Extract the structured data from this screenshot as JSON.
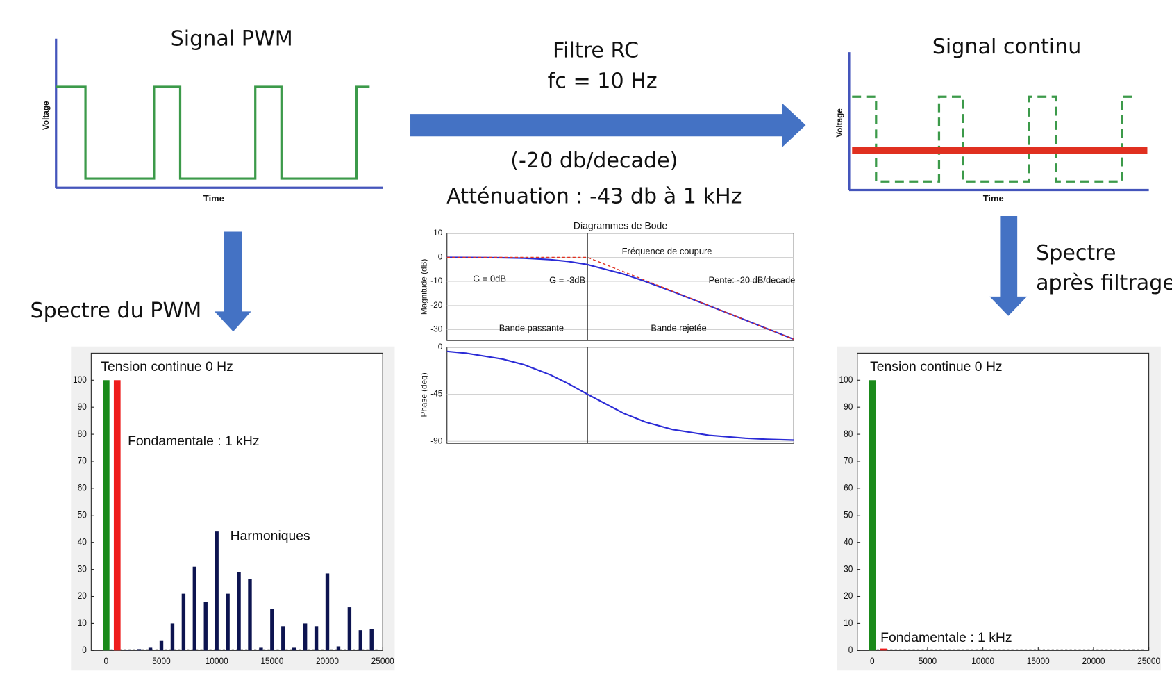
{
  "texts": {
    "filter": "Filtre RC",
    "cutoff": "fc = 10 Hz",
    "slope": "(-20 db/decade)",
    "attenuation": "Atténuation : -43 db à 1 kHz",
    "spectrum_pwm": "Spectre du PWM",
    "spectrum_after": [
      "Spectre",
      "après filtrage"
    ]
  },
  "chart_data": [
    {
      "type": "line",
      "title": "Signal PWM",
      "xlabel": "Time",
      "ylabel": "Voltage",
      "xlim": [
        0,
        100
      ],
      "ylim": [
        -0.1,
        1.5
      ],
      "series": [
        {
          "color": "#3c9a4a",
          "x": [
            0,
            9,
            9,
            30,
            30,
            38,
            38,
            61,
            61,
            69,
            69,
            92,
            92,
            96
          ],
          "values": [
            1,
            1,
            0,
            0,
            1,
            1,
            0,
            0,
            1,
            1,
            0,
            0,
            1,
            1
          ]
        }
      ]
    },
    {
      "type": "line",
      "title": "Signal continu",
      "xlabel": "Time",
      "ylabel": "Voltage",
      "xlim": [
        0,
        100
      ],
      "ylim": [
        -0.1,
        1.5
      ],
      "series": [
        {
          "color": "#3c9a4a",
          "style": "dashed",
          "x": [
            1,
            9,
            9,
            30,
            30,
            38,
            38,
            60,
            60,
            69,
            69,
            91,
            91,
            96
          ],
          "values": [
            1,
            1,
            0,
            0,
            1,
            1,
            0,
            0,
            1,
            1,
            0,
            0,
            1,
            1
          ]
        },
        {
          "color": "#e03020",
          "x": [
            1,
            99.5
          ],
          "values": [
            0.37,
            0.37
          ]
        }
      ]
    },
    {
      "type": "line",
      "title": "Diagrammes de Bode",
      "ylabel": "Magnitude (dB)",
      "xscale": "log",
      "xlim": [
        0.7,
        500
      ],
      "ylim": [
        -34.5,
        10
      ],
      "yticks": [
        10,
        0,
        -10,
        -20,
        -30
      ],
      "grid": true,
      "vline": 10,
      "series": [
        {
          "color": "#2b2bd6",
          "x": [
            0.7,
            1,
            2,
            3,
            5,
            7,
            10,
            20,
            30,
            50,
            100,
            200,
            300,
            500
          ],
          "values": [
            -0.02,
            -0.04,
            -0.17,
            -0.37,
            -0.97,
            -1.74,
            -3.01,
            -6.99,
            -10.0,
            -14.15,
            -20.04,
            -26.03,
            -29.55,
            -33.98
          ]
        },
        {
          "color": "#e03020",
          "style": "dashed",
          "x": [
            0.7,
            10,
            500
          ],
          "values": [
            0,
            0,
            -33.98
          ]
        }
      ],
      "annotations": [
        {
          "text": "Fréquence de coupure",
          "color": "#111111"
        },
        {
          "text": "G = 0dB",
          "color": "#111111"
        },
        {
          "text": "G = -3dB",
          "color": "#111111"
        },
        {
          "text": "Pente: -20 dB/decade",
          "color": "#111111"
        },
        {
          "text": "Bande passante",
          "color": "#111111"
        },
        {
          "text": "Bande rejetée",
          "color": "#111111"
        }
      ]
    },
    {
      "type": "line",
      "ylabel": "Phase (deg)",
      "xscale": "log",
      "xlim": [
        0.7,
        500
      ],
      "ylim": [
        -92,
        0
      ],
      "yticks": [
        0,
        -45,
        -90
      ],
      "grid": true,
      "vline": 10,
      "series": [
        {
          "color": "#2b2bd6",
          "x": [
            0.7,
            1,
            2,
            3,
            5,
            7,
            10,
            20,
            30,
            50,
            100,
            200,
            300,
            500
          ],
          "values": [
            -4.0,
            -5.7,
            -11.3,
            -16.7,
            -26.6,
            -35.0,
            -45,
            -63.4,
            -71.6,
            -78.7,
            -84.3,
            -87.1,
            -88.1,
            -88.9
          ]
        }
      ]
    },
    {
      "type": "bar",
      "xlim": [
        -1350,
        25000
      ],
      "ylim": [
        0,
        110
      ],
      "xticks": [
        0,
        5000,
        10000,
        15000,
        20000,
        25000
      ],
      "yticks": [
        0,
        10,
        20,
        30,
        40,
        50,
        60,
        70,
        80,
        90,
        100
      ],
      "x": [
        0,
        1000,
        2000,
        3000,
        4000,
        5000,
        6000,
        7000,
        8000,
        9000,
        10000,
        11000,
        12000,
        13000,
        14000,
        15000,
        16000,
        17000,
        18000,
        19000,
        20000,
        21000,
        22000,
        23000,
        24000
      ],
      "values": [
        100,
        100,
        0.3,
        0.5,
        1,
        3.5,
        10,
        21,
        31,
        18,
        44,
        21,
        29,
        26.5,
        1,
        15.5,
        9,
        1,
        10,
        9,
        28.5,
        1.5,
        16,
        7.5,
        8
      ],
      "colors": [
        "#1a8a1a",
        "#ee1c1c",
        "#0d1450",
        "#0d1450",
        "#0d1450",
        "#0d1450",
        "#0d1450",
        "#0d1450",
        "#0d1450",
        "#0d1450",
        "#0d1450",
        "#0d1450",
        "#0d1450",
        "#0d1450",
        "#0d1450",
        "#0d1450",
        "#0d1450",
        "#0d1450",
        "#0d1450",
        "#0d1450",
        "#0d1450",
        "#0d1450",
        "#0d1450",
        "#0d1450",
        "#0d1450"
      ],
      "annotations": [
        {
          "text": "Tension continue 0 Hz",
          "color": "#2e5e1a"
        },
        {
          "text": "Fondamentale : 1 kHz",
          "color": "#e01b1b"
        },
        {
          "text": "Harmoniques",
          "color": "#0d1a5a"
        }
      ]
    },
    {
      "type": "bar",
      "xlim": [
        -1350,
        25000
      ],
      "ylim": [
        0,
        110
      ],
      "xticks": [
        0,
        5000,
        10000,
        15000,
        20000,
        25000
      ],
      "yticks": [
        0,
        10,
        20,
        30,
        40,
        50,
        60,
        70,
        80,
        90,
        100
      ],
      "x": [
        0,
        1000
      ],
      "values": [
        100,
        0.7
      ],
      "colors": [
        "#1a8a1a",
        "#ee1c1c"
      ],
      "annotations": [
        {
          "text": "Tension continue 0 Hz",
          "color": "#2e5e1a"
        },
        {
          "text": "Fondamentale : 1 kHz",
          "color": "#e01b1b"
        }
      ]
    }
  ]
}
